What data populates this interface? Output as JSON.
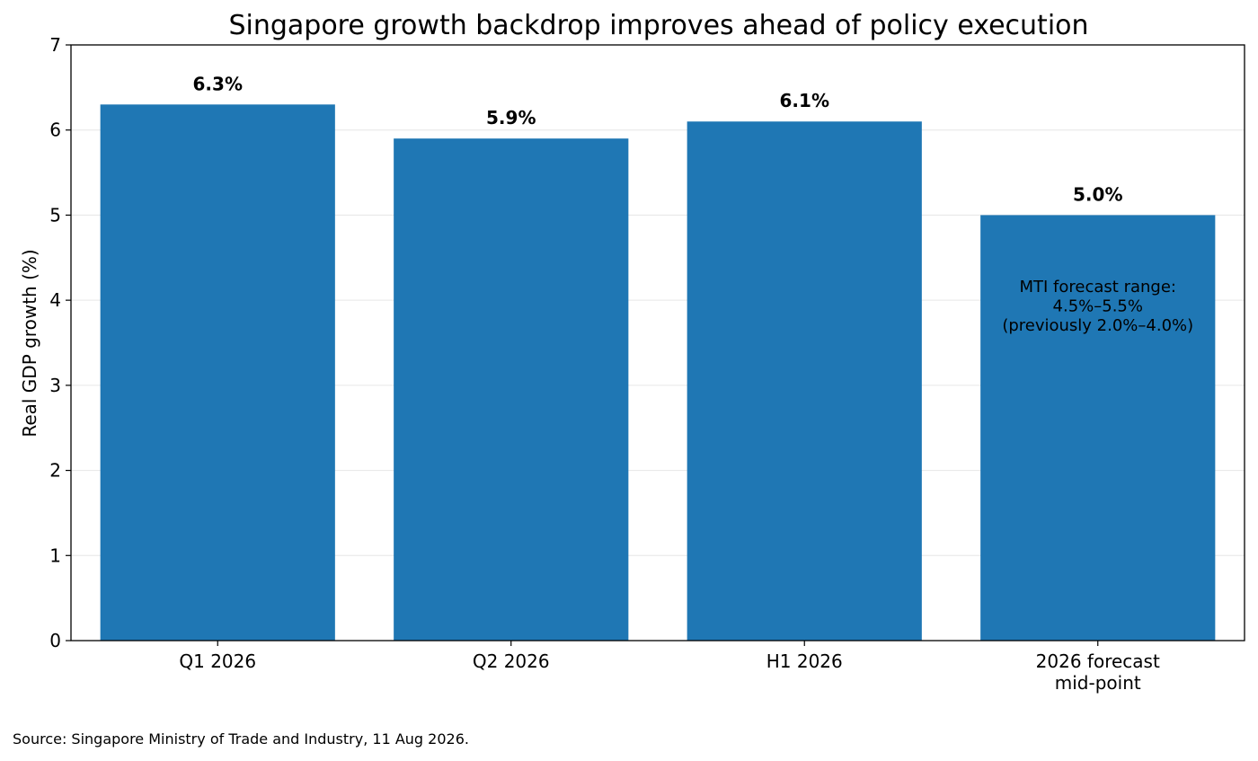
{
  "chart_data": {
    "type": "bar",
    "title": "Singapore growth backdrop improves ahead of policy execution",
    "xlabel": "",
    "ylabel": "Real GDP growth (%)",
    "ylim": [
      0,
      7
    ],
    "yticks": [
      0,
      1,
      2,
      3,
      4,
      5,
      6,
      7
    ],
    "grid": "horizontal",
    "categories": [
      [
        "Q1 2026"
      ],
      [
        "Q2 2026"
      ],
      [
        "H1 2026"
      ],
      [
        "2026 forecast",
        "mid-point"
      ]
    ],
    "values": [
      6.3,
      5.9,
      6.1,
      5.0
    ],
    "data_labels": [
      "6.3%",
      "5.9%",
      "6.1%",
      "5.0%"
    ],
    "bar_color": "#1f77b4",
    "annotation": {
      "bar_index": 3,
      "lines": [
        "MTI forecast range:",
        "4.5%–5.5%",
        "(previously 2.0%–4.0%)"
      ]
    }
  },
  "source": "Source: Singapore Ministry of Trade and Industry, 11 Aug 2026."
}
